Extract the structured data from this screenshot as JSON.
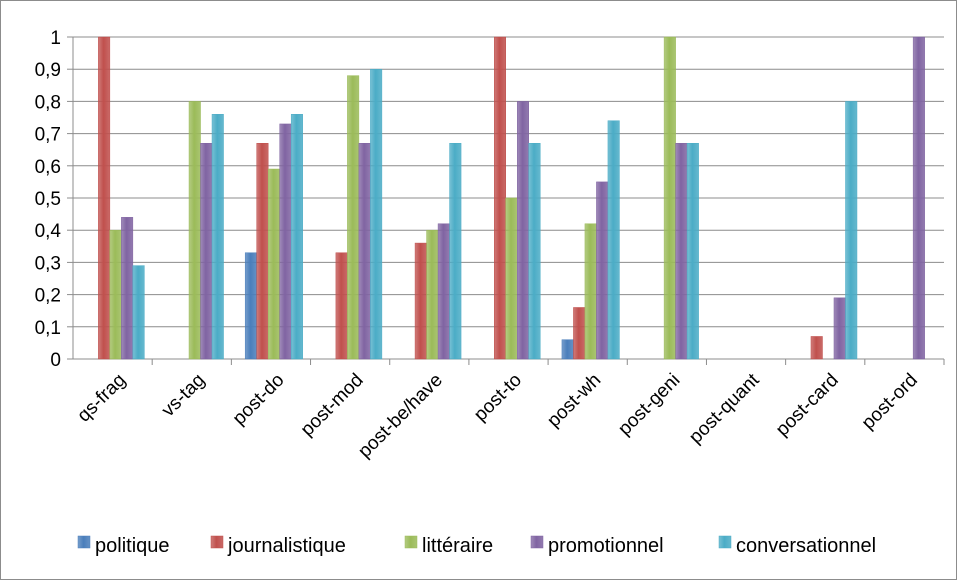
{
  "chart_data": {
    "type": "bar",
    "title": "",
    "xlabel": "",
    "ylabel": "",
    "ylim": [
      0,
      1
    ],
    "y_ticks": [
      "0",
      "0,1",
      "0,2",
      "0,3",
      "0,4",
      "0,5",
      "0,6",
      "0,7",
      "0,8",
      "0,9",
      "1"
    ],
    "grid": true,
    "legend_position": "bottom",
    "categories": [
      "qs-frag",
      "vs-tag",
      "post-do",
      "post-mod",
      "post-be/have",
      "post-to",
      "post-wh",
      "post-geni",
      "post-quant",
      "post-card",
      "post-ord"
    ],
    "series": [
      {
        "name": "politique",
        "color": "#4a7ebb",
        "values": [
          0,
          0,
          0.33,
          0,
          0,
          0,
          0.06,
          0,
          0,
          0,
          0
        ]
      },
      {
        "name": "journalistique",
        "color": "#c0504d",
        "values": [
          1,
          0,
          0.67,
          0.33,
          0.36,
          1,
          0.16,
          0,
          0,
          0.07,
          0
        ]
      },
      {
        "name": "littéraire",
        "color": "#9bbb59",
        "values": [
          0.4,
          0.8,
          0.59,
          0.88,
          0.4,
          0.5,
          0.42,
          1,
          0,
          0,
          0
        ]
      },
      {
        "name": "promotionnel",
        "color": "#8064a2",
        "values": [
          0.44,
          0.67,
          0.73,
          0.67,
          0.42,
          0.8,
          0.55,
          0.67,
          0,
          0.19,
          1
        ]
      },
      {
        "name": "conversationnel",
        "color": "#4bacc6",
        "values": [
          0.29,
          0.76,
          0.76,
          0.9,
          0.67,
          0.67,
          0.74,
          0.67,
          0,
          0.8,
          0
        ]
      }
    ]
  }
}
